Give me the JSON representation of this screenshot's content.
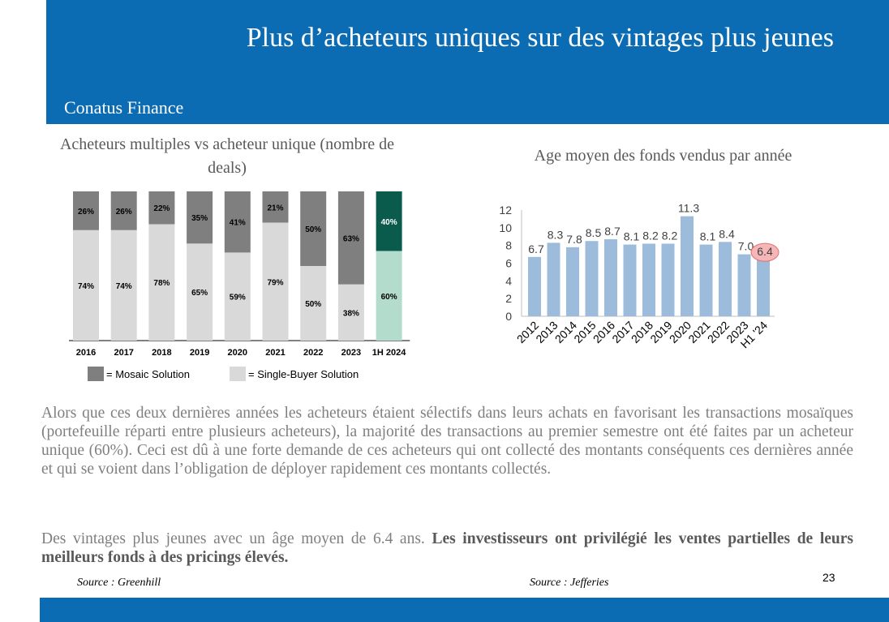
{
  "header": {
    "title": "Plus d’acheteurs uniques sur des vintages plus jeunes",
    "brand": "Conatus Finance"
  },
  "left_chart_title": "Acheteurs multiples vs acheteur unique (nombre de deals)",
  "right_chart_title": "Age moyen des fonds vendus par année",
  "chart_data": [
    {
      "type": "bar",
      "stacked": true,
      "percent": true,
      "title": "Acheteurs multiples vs acheteur unique (nombre de deals)",
      "categories": [
        "2016",
        "2017",
        "2018",
        "2019",
        "2020",
        "2021",
        "2022",
        "2023",
        "1H 2024"
      ],
      "series": [
        {
          "name": "= Single-Buyer Solution",
          "values": [
            74,
            74,
            78,
            65,
            59,
            79,
            50,
            38,
            60
          ],
          "labels": [
            "74%",
            "74%",
            "78%",
            "65%",
            "59%",
            "79%",
            "50%",
            "38%",
            "60%"
          ],
          "color": "#d9d9d9"
        },
        {
          "name": "= Mosaic Solution",
          "values": [
            26,
            26,
            22,
            35,
            41,
            21,
            50,
            63,
            40
          ],
          "labels": [
            "26%",
            "26%",
            "22%",
            "35%",
            "41%",
            "21%",
            "50%",
            "63%",
            "40%"
          ],
          "color": "#7f7f7f"
        }
      ],
      "highlight": {
        "category": "1H 2024",
        "colors": {
          "= Single-Buyer Solution": "#b3dccd",
          "= Mosaic Solution": "#0b5b4c"
        }
      },
      "legend": "bottom",
      "ylim": [
        0,
        100
      ]
    },
    {
      "type": "bar",
      "title": "Age moyen des fonds vendus par année",
      "categories": [
        "2012",
        "2013",
        "2014",
        "2015",
        "2016",
        "2017",
        "2018",
        "2019",
        "2020",
        "2021",
        "2022",
        "2023",
        "H1 '24"
      ],
      "values": [
        6.7,
        8.3,
        7.8,
        8.5,
        8.7,
        8.1,
        8.2,
        8.2,
        11.3,
        8.1,
        8.4,
        7.0,
        6.4
      ],
      "value_labels": [
        "6.7",
        "8.3",
        "7.8",
        "8.5",
        "8.7",
        "8.1",
        "8.2",
        "8.2",
        "11.3",
        "8.1",
        "8.4",
        "7.0",
        "6.4"
      ],
      "yticks": [
        "0",
        "2",
        "4",
        "6",
        "8",
        "10",
        "12"
      ],
      "ylim": [
        0,
        12
      ],
      "bar_color": "#9dbcdc",
      "highlight": {
        "category": "H1 '24",
        "color": "#f4b6b6"
      },
      "grid": false
    }
  ],
  "text": {
    "para1": "Alors que ces deux dernières années les acheteurs étaient sélectifs dans leurs achats en favorisant les transactions mosaïques (portefeuille réparti entre plusieurs acheteurs), la majorité des transactions au premier semestre ont été faites par un acheteur unique (60%). Ceci est dû à une forte demande de ces acheteurs qui ont collecté des montants conséquents ces dernières année et qui se voient dans l’obligation de déployer rapidement ces montants collectés.",
    "para2_normal": "Des vintages plus jeunes avec un âge moyen de 6.4 ans. ",
    "para2_bold": "Les investisseurs ont privilégié les ventes partielles de leurs meilleurs fonds à des pricings élevés."
  },
  "sources": {
    "left": "Source : Greenhill",
    "right": "Source : Jefferies"
  },
  "page_number": "23",
  "colors": {
    "header_blue": "#0b6bb3",
    "mosaic_gray": "#7f7f7f",
    "single_gray": "#d9d9d9",
    "highlight_dark_green": "#0b5b4c",
    "highlight_light_green": "#b3dccd",
    "age_bar_blue": "#9dbcdc",
    "highlight_pink": "#f4b6b6"
  }
}
